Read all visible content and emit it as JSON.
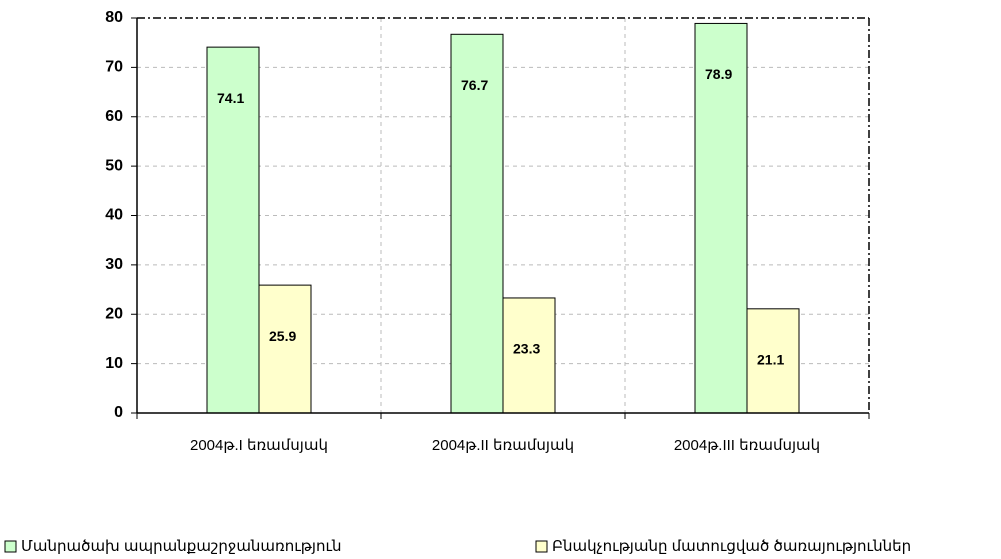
{
  "chart_data": {
    "type": "bar",
    "categories": [
      "2004թ.I եռամսյակ",
      "2004թ.II եռամսյակ",
      "2004թ.III եռամսյակ"
    ],
    "series": [
      {
        "name": "Մանրածախ ապրանքաշրջանառություն",
        "color": "#ccffcc",
        "values": [
          74.1,
          76.7,
          78.9
        ]
      },
      {
        "name": "Բնակչությանը մատուցված ծառայություններ",
        "color": "#ffffcc",
        "values": [
          25.9,
          23.3,
          21.1
        ]
      }
    ],
    "ylim": [
      0,
      80
    ],
    "yticks": [
      0,
      10,
      20,
      30,
      40,
      50,
      60,
      70,
      80
    ],
    "grid": true,
    "legend": "bottom"
  }
}
